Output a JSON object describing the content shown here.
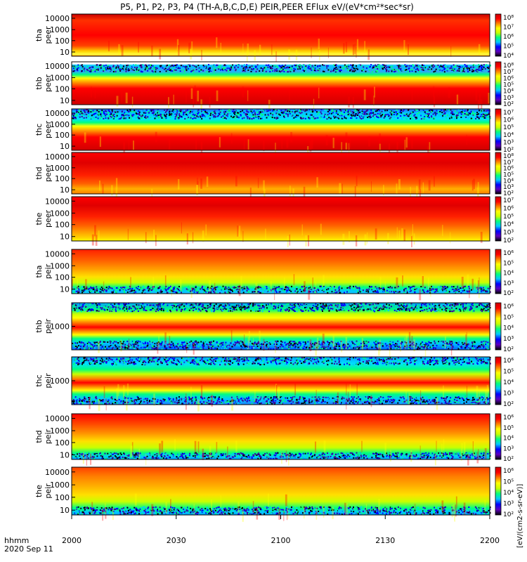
{
  "title": "P5, P1, P2, P3, P4 (TH-A,B,C,D,E) PEIR,PEER EFlux eV/(eV*cm²*sec*sr)",
  "time_axis": {
    "label_line1": "hhmm",
    "label_line2": "2020 Sep 11",
    "ticks": [
      "2000",
      "2030",
      "2100",
      "2130",
      "2200"
    ]
  },
  "colorbar_unit": "[eV/(cm2-s-sr-eV)]",
  "colorbar_ticks": [
    "10²",
    "10³",
    "10⁴",
    "10⁵",
    "10⁶",
    "10⁷",
    "10⁸"
  ],
  "colors": {
    "background": "#ffffff",
    "colormap": [
      "#000000",
      "#3c00a0",
      "#0000ff",
      "#00c8ff",
      "#00ff80",
      "#c8ff00",
      "#ffff00",
      "#ff8000",
      "#ff0000",
      "#c80000"
    ]
  },
  "chart_data": {
    "type": "heatmap",
    "title": "P5, P1, P2, P3, P4 (TH-A,B,C,D,E) PEIR,PEER EFlux eV/(eV*cm²*sec*sr)",
    "x_range": [
      "2000",
      "2200"
    ],
    "x_label": "hhmm 2020 Sep 11",
    "colorscale": "log",
    "panels": [
      {
        "id": "tha_peer",
        "label": [
          "tha",
          "peer"
        ],
        "ylim": [
          7,
          30000
        ],
        "yticks": [
          "10000",
          "1000",
          "100",
          "10"
        ],
        "clim": [
          "10⁴",
          "10⁸"
        ]
      },
      {
        "id": "thb_peer",
        "label": [
          "thb",
          "peer"
        ],
        "ylim": [
          7,
          30000
        ],
        "yticks": [
          "10000",
          "1000",
          "100",
          "10"
        ],
        "clim": [
          "10²",
          "10⁸"
        ]
      },
      {
        "id": "thc_peer",
        "label": [
          "thc",
          "peer"
        ],
        "ylim": [
          7,
          30000
        ],
        "yticks": [
          "10000",
          "1000",
          "100",
          "10"
        ],
        "clim": [
          "10²",
          "10⁷"
        ]
      },
      {
        "id": "thd_peer",
        "label": [
          "thd",
          "peer"
        ],
        "ylim": [
          7,
          30000
        ],
        "yticks": [
          "10000",
          "1000",
          "100",
          "10"
        ],
        "clim": [
          "10²",
          "10⁸"
        ]
      },
      {
        "id": "the_peer",
        "label": [
          "the",
          "peer"
        ],
        "ylim": [
          7,
          30000
        ],
        "yticks": [
          "10000",
          "1000",
          "100",
          "10"
        ],
        "clim": [
          "10²",
          "10⁷"
        ]
      },
      {
        "id": "tha_peir",
        "label": [
          "tha",
          "peir"
        ],
        "ylim": [
          5,
          30000
        ],
        "yticks": [
          "10000",
          "1000",
          "100",
          "10"
        ],
        "clim": [
          "10²",
          "10⁶"
        ]
      },
      {
        "id": "thb_peir",
        "label": [
          "thb",
          "peir"
        ],
        "ylim": [
          5,
          30000
        ],
        "yticks": [
          "1000"
        ],
        "clim": [
          "10²",
          "10⁶"
        ]
      },
      {
        "id": "thc_peir",
        "label": [
          "thc",
          "peir"
        ],
        "ylim": [
          5,
          30000
        ],
        "yticks": [
          "1000"
        ],
        "clim": [
          "10²",
          "10⁶"
        ]
      },
      {
        "id": "thd_peir",
        "label": [
          "thd",
          "peir"
        ],
        "ylim": [
          5,
          30000
        ],
        "yticks": [
          "10000",
          "1000",
          "100",
          "10"
        ],
        "clim": [
          "10²",
          "10⁶"
        ]
      },
      {
        "id": "the_peir",
        "label": [
          "the",
          "peir"
        ],
        "ylim": [
          5,
          30000
        ],
        "yticks": [
          "10000",
          "1000",
          "100",
          "10"
        ],
        "clim": [
          "10²",
          "10⁶"
        ]
      }
    ]
  }
}
